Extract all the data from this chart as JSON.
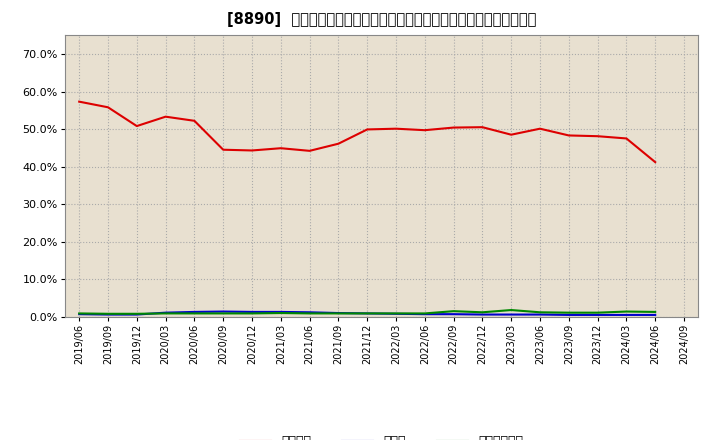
{
  "title": "[8890]  自己資本、のれん、繰延税金資産の総資産に対する比率の推移",
  "x_labels": [
    "2019/06",
    "2019/09",
    "2019/12",
    "2020/03",
    "2020/06",
    "2020/09",
    "2020/12",
    "2021/03",
    "2021/06",
    "2021/09",
    "2021/12",
    "2022/03",
    "2022/06",
    "2022/09",
    "2022/12",
    "2023/03",
    "2023/06",
    "2023/09",
    "2023/12",
    "2024/03",
    "2024/06",
    "2024/09"
  ],
  "equity_ratio": [
    0.573,
    0.558,
    0.508,
    0.533,
    0.522,
    0.445,
    0.443,
    0.449,
    0.442,
    0.461,
    0.499,
    0.501,
    0.497,
    0.504,
    0.505,
    0.485,
    0.501,
    0.483,
    0.481,
    0.475,
    0.412,
    null
  ],
  "goodwill_ratio": [
    0.007,
    0.006,
    0.006,
    0.011,
    0.013,
    0.014,
    0.013,
    0.013,
    0.012,
    0.01,
    0.009,
    0.008,
    0.007,
    0.007,
    0.006,
    0.006,
    0.006,
    0.005,
    0.005,
    0.005,
    0.005,
    null
  ],
  "deferred_tax_ratio": [
    0.009,
    0.008,
    0.008,
    0.009,
    0.009,
    0.009,
    0.009,
    0.01,
    0.009,
    0.009,
    0.009,
    0.009,
    0.009,
    0.015,
    0.012,
    0.018,
    0.012,
    0.011,
    0.011,
    0.014,
    0.013,
    null
  ],
  "equity_color": "#dd0000",
  "goodwill_color": "#0000cc",
  "deferred_tax_color": "#008800",
  "bg_color": "#ffffff",
  "plot_bg_color": "#e8e0d0",
  "grid_color": "#aaaaaa",
  "legend_labels": [
    "自己資本",
    "のれん",
    "繰延税金資産"
  ],
  "ylim": [
    0.0,
    0.75
  ],
  "yticks": [
    0.0,
    0.1,
    0.2,
    0.3,
    0.4,
    0.5,
    0.6,
    0.7
  ]
}
